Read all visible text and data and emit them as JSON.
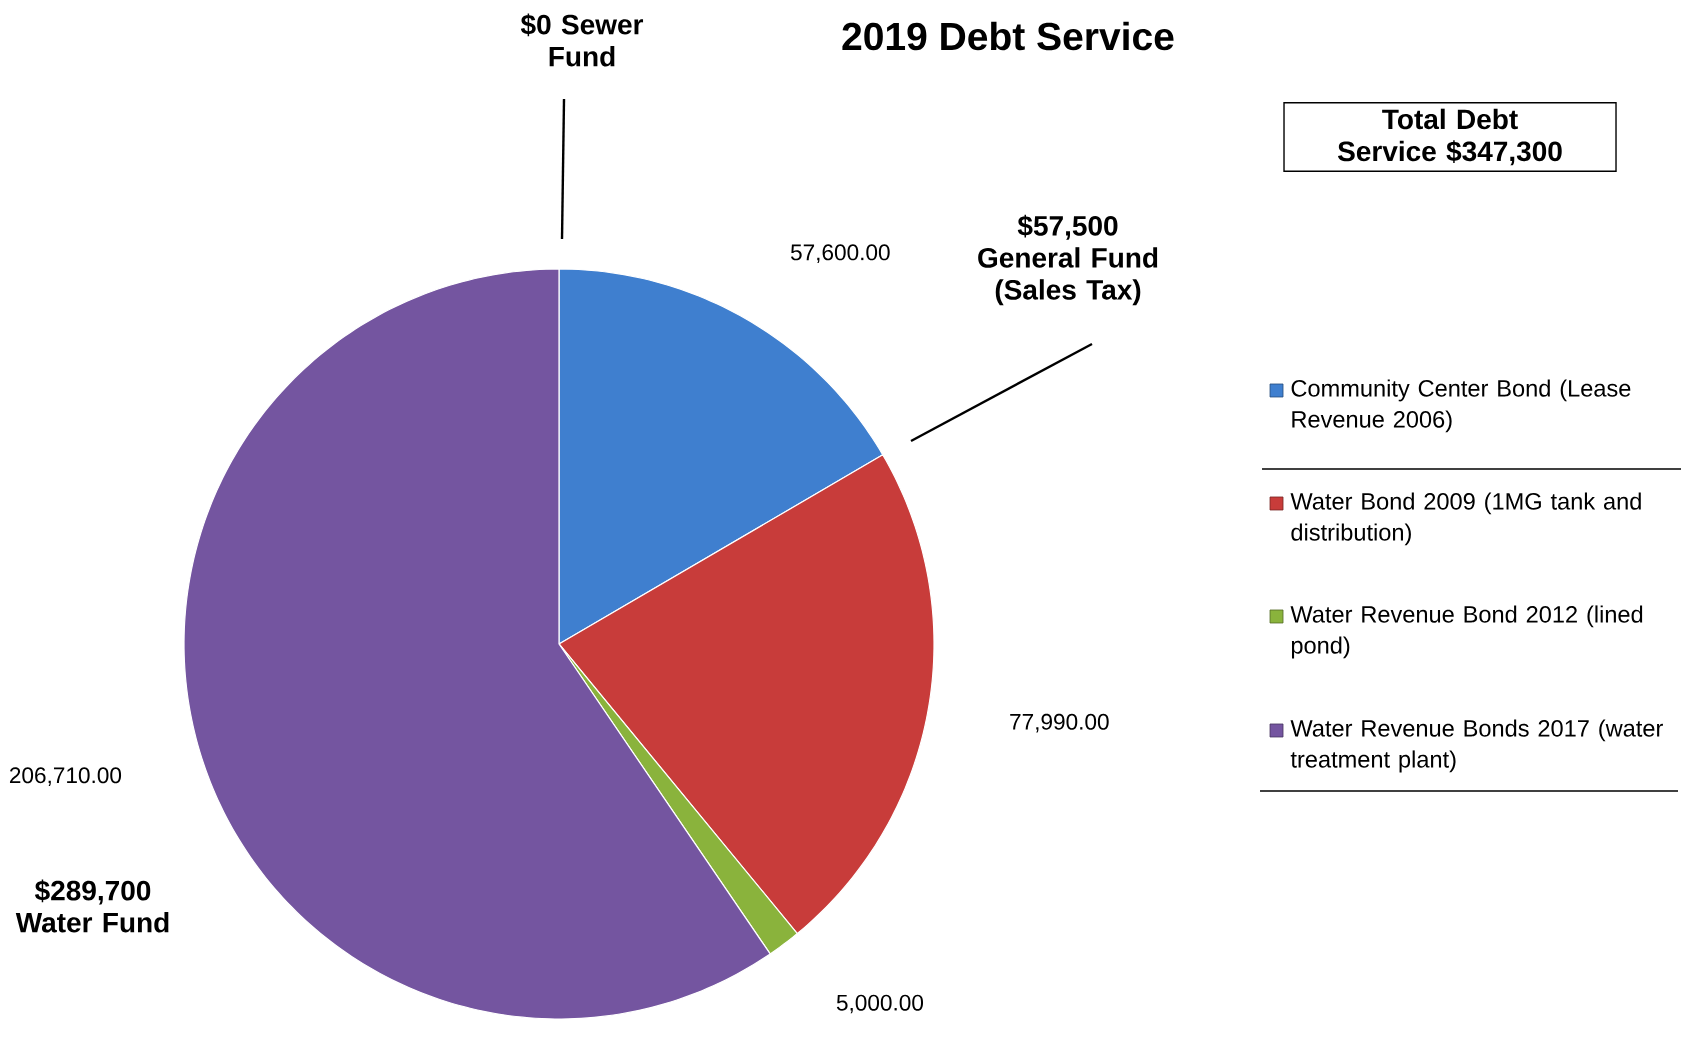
{
  "chart_data": {
    "type": "pie",
    "title": "2019 Debt Service",
    "categories": [
      "Community Center Bond (Lease Revenue 2006)",
      "Water Bond 2009 (1MG tank and distribution)",
      "Water Revenue Bond 2012 (lined pond)",
      "Water Revenue Bonds 2017 (water treatment plant)"
    ],
    "values": [
      57600,
      77990,
      5000,
      206710
    ],
    "colors": [
      "#3f7fcf",
      "#c83c3a",
      "#8ab33c",
      "#7455a0"
    ],
    "value_labels": [
      "57,600.00",
      "77,990.00",
      "5,000.00",
      "206,710.00"
    ],
    "legend": "right",
    "annotations": [
      "$0 Sewer Fund",
      "$57,500 General Fund (Sales Tax)",
      "$289,700 Water Fund",
      "Total Debt Service $347,300"
    ]
  }
}
